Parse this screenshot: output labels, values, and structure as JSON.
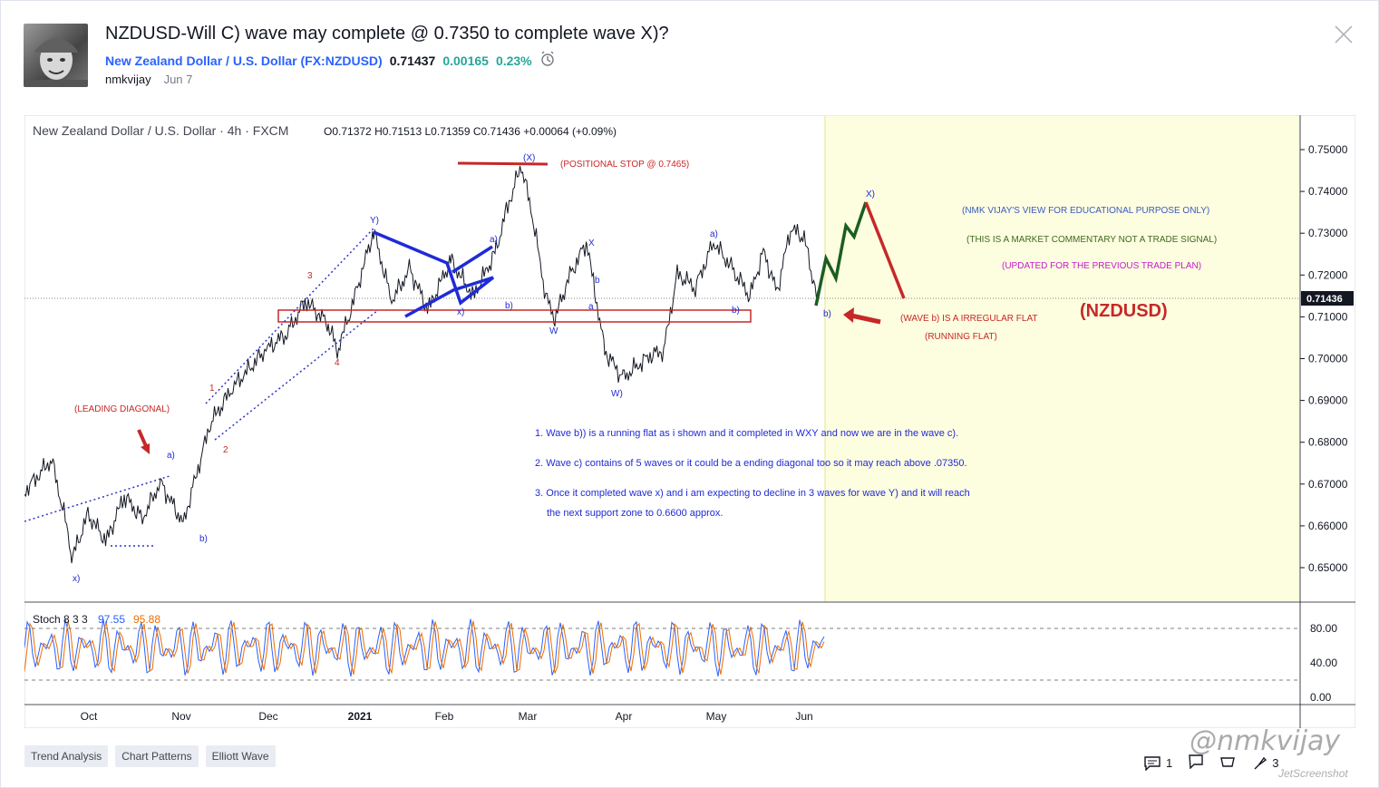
{
  "post": {
    "title": "NZDUSD-Will C) wave may complete @ 0.7350 to complete wave X)?",
    "symbol_name": "New Zealand Dollar / U.S. Dollar",
    "symbol_code": "(FX:NZDUSD)",
    "price": "0.71437",
    "change": "0.00165",
    "change_pct": "0.23%",
    "author": "nmkvijay",
    "date": "Jun 7"
  },
  "chart_header": {
    "name": "New Zealand Dollar / U.S. Dollar",
    "interval": "4h",
    "source": "FXCM",
    "open": "0.71372",
    "high": "0.71513",
    "low": "0.71359",
    "close": "0.71436",
    "change": "+0.00064 (+0.09%)"
  },
  "chart_data": {
    "type": "line",
    "symbol": "NZDUSD",
    "ylim": [
      0.645,
      0.755
    ],
    "price_ticks": [
      "0.75000",
      "0.74000",
      "0.73000",
      "0.72000",
      "0.71000",
      "0.70000",
      "0.69000",
      "0.68000",
      "0.67000",
      "0.66000",
      "0.65000"
    ],
    "last_price_label": "0.71436",
    "x_labels": [
      "Oct",
      "Nov",
      "Dec",
      "2021",
      "Feb",
      "Mar",
      "Apr",
      "May",
      "Jun"
    ],
    "stoch": {
      "label": "Stoch 8 3 3",
      "k": "97.55",
      "d": "95.88",
      "ticks": [
        "80.00",
        "40.00",
        "0.00"
      ]
    },
    "wave_labels": [
      "x)",
      "a)",
      "b)",
      "1",
      "2",
      "3",
      "4",
      "Y)",
      "x)",
      "a)",
      "b)",
      "(X)",
      "X",
      "W",
      "a",
      "b",
      "W)",
      "a)",
      "b)",
      "X)",
      "b)"
    ],
    "annotations": {
      "leading_diagonal": "(LEADING DIAGONAL)",
      "positional_stop": "(POSITIONAL STOP @ 0.7465)",
      "view1": "(NMK VIJAY'S VIEW FOR EDUCATIONAL PURPOSE ONLY)",
      "view2": "(THIS IS A MARKET COMMENTARY NOT A TRADE SIGNAL)",
      "view3": "(UPDATED FOR THE PREVIOUS TRADE PLAN)",
      "symbol_big": "(NZDUSD)",
      "wave_b1": "(WAVE b) IS A IRREGULAR FLAT",
      "wave_b2": "(RUNNING FLAT)",
      "note1": "1. Wave b)) is a running flat as i shown and it completed in  WXY and now we are in the wave c).",
      "note2": "2. Wave c) contains of 5 waves or it could be a ending diagonal too so it may reach above .07350.",
      "note3": "3. Once it completed wave x) and i am expecting to decline in 3 waves for wave Y) and it will reach",
      "note3b": "the next support zone to 0.6600 approx."
    },
    "colors": {
      "up_path": "#1b5e20",
      "down_path": "#c62828",
      "blue": "#1f2bd6",
      "red": "#c62828",
      "highlight": "#fdfde0"
    }
  },
  "tags": [
    "Trend Analysis",
    "Chart Patterns",
    "Elliott Wave"
  ],
  "stats": {
    "comments": "1",
    "boosts": "3"
  },
  "watermark": "@nmkvijay",
  "jetshot": "JetScreenshot"
}
